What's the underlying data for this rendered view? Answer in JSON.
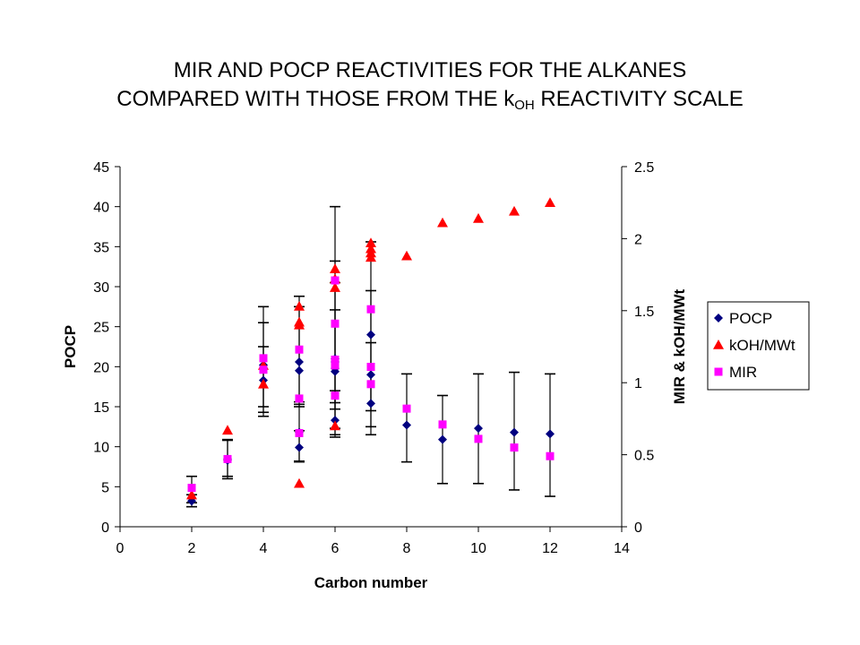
{
  "title": {
    "line1": "MIR AND POCP REACTIVITIES FOR THE ALKANES",
    "line2_prefix": "COMPARED WITH THOSE FROM THE k",
    "line2_sub": "OH",
    "line2_suffix": " REACTIVITY SCALE"
  },
  "chart_data": {
    "type": "scatter",
    "xlabel": "Carbon number",
    "ylabel": "POCP",
    "y2label": "MIR & kOH/MWt",
    "xlim": [
      0,
      14
    ],
    "ylim": [
      0,
      45
    ],
    "y2lim": [
      0,
      2.5
    ],
    "xticks": [
      0,
      2,
      4,
      6,
      8,
      10,
      12,
      14
    ],
    "yticks": [
      0,
      5,
      10,
      15,
      20,
      25,
      30,
      35,
      40,
      45
    ],
    "y2ticks": [
      0,
      0.5,
      1,
      1.5,
      2,
      2.5
    ],
    "grid": false,
    "legend": "right",
    "series": [
      {
        "name": "POCP",
        "axis": "left",
        "marker": "diamond",
        "color": "#000080",
        "points": [
          {
            "x": 2,
            "y": 3.2,
            "low": 2.5,
            "high": 6.3
          },
          {
            "x": 2,
            "y": 3.6,
            "low": 3.0,
            "high": 4.0
          },
          {
            "x": 3,
            "y": 8.3,
            "low": 6.0,
            "high": 10.9
          },
          {
            "x": 3,
            "y": 8.5,
            "low": 6.3,
            "high": 10.8
          },
          {
            "x": 4,
            "y": 18.3,
            "low": 13.8,
            "high": 27.5
          },
          {
            "x": 4,
            "y": 20.2,
            "low": 14.3,
            "high": 25.5
          },
          {
            "x": 4,
            "y": 19.8,
            "low": 15.0,
            "high": 22.5
          },
          {
            "x": 5,
            "y": 9.9,
            "low": 8.2,
            "high": 12.0
          },
          {
            "x": 5,
            "y": 20.6,
            "low": 15.6,
            "high": 28.8
          },
          {
            "x": 5,
            "y": 19.5,
            "low": 15.0,
            "high": 27.5
          },
          {
            "x": 5,
            "y": 11.8,
            "low": 8.1,
            "high": 15.3
          },
          {
            "x": 6,
            "y": 13.3,
            "low": 11.2,
            "high": 17.0
          },
          {
            "x": 6,
            "y": 19.4,
            "low": 15.5,
            "high": 40.0
          },
          {
            "x": 6,
            "y": 20.6,
            "low": 14.7,
            "high": 33.2
          },
          {
            "x": 6,
            "y": 19.8,
            "low": 12.3,
            "high": 27.1
          },
          {
            "x": 6,
            "y": 21.0,
            "low": 11.5,
            "high": 30.5
          },
          {
            "x": 7,
            "y": 24.0,
            "low": 11.5,
            "high": 35.6
          },
          {
            "x": 7,
            "y": 15.4,
            "low": 12.5,
            "high": 23.0
          },
          {
            "x": 7,
            "y": 19.0,
            "low": 14.5,
            "high": 29.5
          },
          {
            "x": 8,
            "y": 12.7,
            "low": 8.1,
            "high": 19.1
          },
          {
            "x": 9,
            "y": 10.9,
            "low": 5.4,
            "high": 16.4
          },
          {
            "x": 10,
            "y": 12.3,
            "low": 5.4,
            "high": 19.1
          },
          {
            "x": 11,
            "y": 11.8,
            "low": 4.6,
            "high": 19.3
          },
          {
            "x": 12,
            "y": 11.6,
            "low": 3.8,
            "high": 19.1
          }
        ]
      },
      {
        "name": "kOH/MWt",
        "axis": "right",
        "marker": "triangle",
        "color": "#ff0000",
        "points": [
          {
            "x": 2,
            "y": 0.22
          },
          {
            "x": 3,
            "y": 0.67
          },
          {
            "x": 4,
            "y": 0.99
          },
          {
            "x": 4,
            "y": 1.12
          },
          {
            "x": 5,
            "y": 0.3
          },
          {
            "x": 5,
            "y": 1.4
          },
          {
            "x": 5,
            "y": 1.42
          },
          {
            "x": 5,
            "y": 1.53
          },
          {
            "x": 6,
            "y": 0.7
          },
          {
            "x": 6,
            "y": 1.66
          },
          {
            "x": 6,
            "y": 1.72
          },
          {
            "x": 6,
            "y": 1.79
          },
          {
            "x": 7,
            "y": 1.87
          },
          {
            "x": 7,
            "y": 1.9
          },
          {
            "x": 7,
            "y": 1.93
          },
          {
            "x": 7,
            "y": 1.97
          },
          {
            "x": 8,
            "y": 1.88
          },
          {
            "x": 9,
            "y": 2.11
          },
          {
            "x": 10,
            "y": 2.14
          },
          {
            "x": 11,
            "y": 2.19
          },
          {
            "x": 12,
            "y": 2.25
          }
        ]
      },
      {
        "name": "MIR",
        "axis": "right",
        "marker": "square",
        "color": "#ff00ff",
        "points": [
          {
            "x": 2,
            "y": 0.27
          },
          {
            "x": 3,
            "y": 0.47
          },
          {
            "x": 4,
            "y": 1.09
          },
          {
            "x": 4,
            "y": 1.17
          },
          {
            "x": 5,
            "y": 0.65
          },
          {
            "x": 5,
            "y": 0.89
          },
          {
            "x": 5,
            "y": 1.23
          },
          {
            "x": 6,
            "y": 0.91
          },
          {
            "x": 6,
            "y": 1.12
          },
          {
            "x": 6,
            "y": 1.16
          },
          {
            "x": 6,
            "y": 1.41
          },
          {
            "x": 6,
            "y": 1.71
          },
          {
            "x": 7,
            "y": 0.99
          },
          {
            "x": 7,
            "y": 1.11
          },
          {
            "x": 7,
            "y": 1.51
          },
          {
            "x": 8,
            "y": 0.82
          },
          {
            "x": 9,
            "y": 0.71
          },
          {
            "x": 10,
            "y": 0.61
          },
          {
            "x": 11,
            "y": 0.55
          },
          {
            "x": 12,
            "y": 0.49
          }
        ]
      }
    ]
  }
}
